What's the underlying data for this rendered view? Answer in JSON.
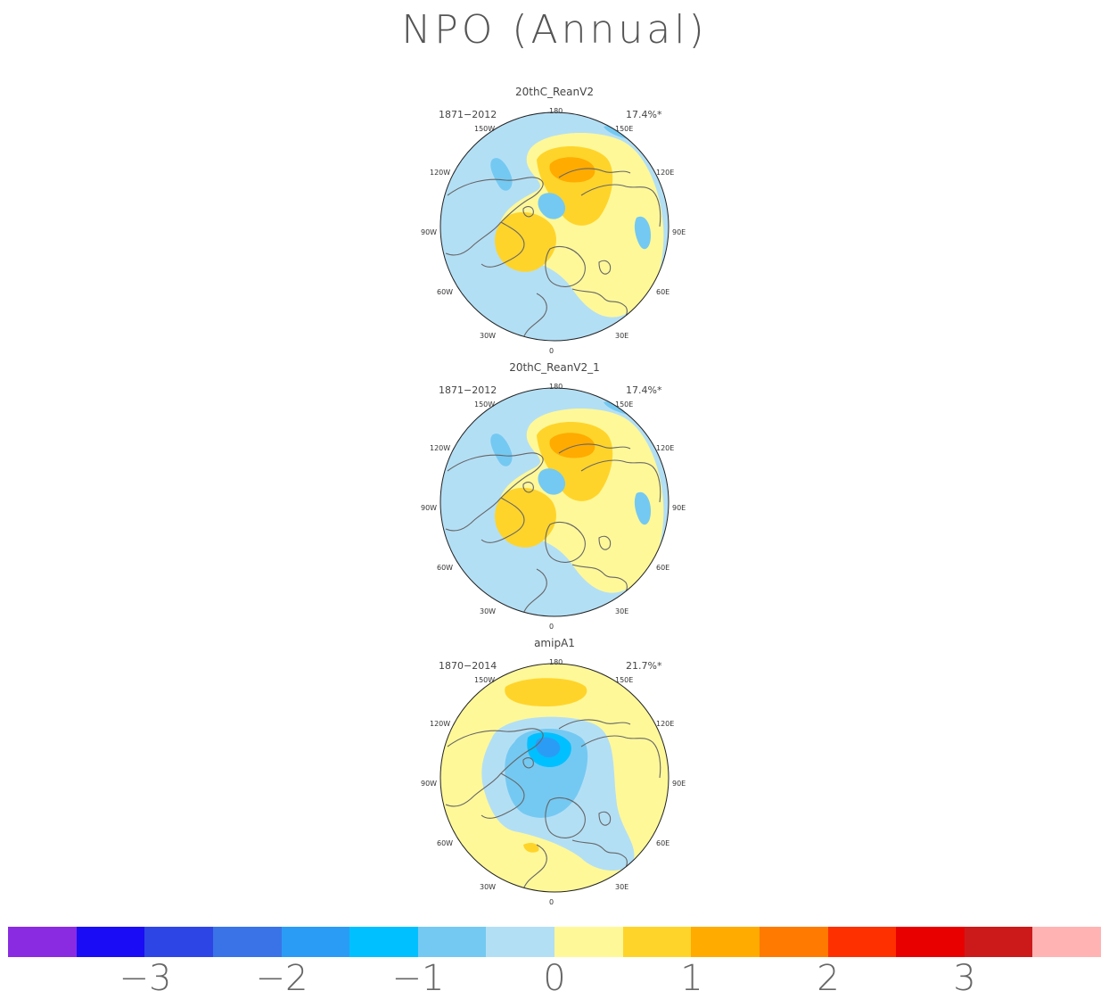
{
  "title": "NPO (Annual)",
  "panels": [
    {
      "name": "20thC_ReanV2",
      "period": "1871−2012",
      "variance": "17.4%*",
      "pattern": "rean"
    },
    {
      "name": "20thC_ReanV2_1",
      "period": "1871−2012",
      "variance": "17.4%*",
      "pattern": "rean"
    },
    {
      "name": "amipA1",
      "period": "1870−2014",
      "variance": "21.7%*",
      "pattern": "amip"
    }
  ],
  "lon_labels": {
    "top": "180",
    "l150": "150W",
    "r150": "150E",
    "l120": "120W",
    "r120": "120E",
    "l90": "90W",
    "r90": "90E",
    "l60": "60W",
    "r60": "60E",
    "l30": "30W",
    "r30": "30E",
    "bottom": "0"
  },
  "colorbar": {
    "colors": [
      "#8a2be2",
      "#1a0cf5",
      "#2e45e6",
      "#3a73e8",
      "#2b9cf5",
      "#00c0ff",
      "#74c9f2",
      "#b3dff5",
      "#fff899",
      "#ffd42a",
      "#ffab00",
      "#ff7a00",
      "#ff3000",
      "#e80000",
      "#cc1a1a",
      "#ffb3b3"
    ],
    "ticks": [
      "−3",
      "−2",
      "−1",
      "0",
      "1",
      "2",
      "3"
    ]
  }
}
